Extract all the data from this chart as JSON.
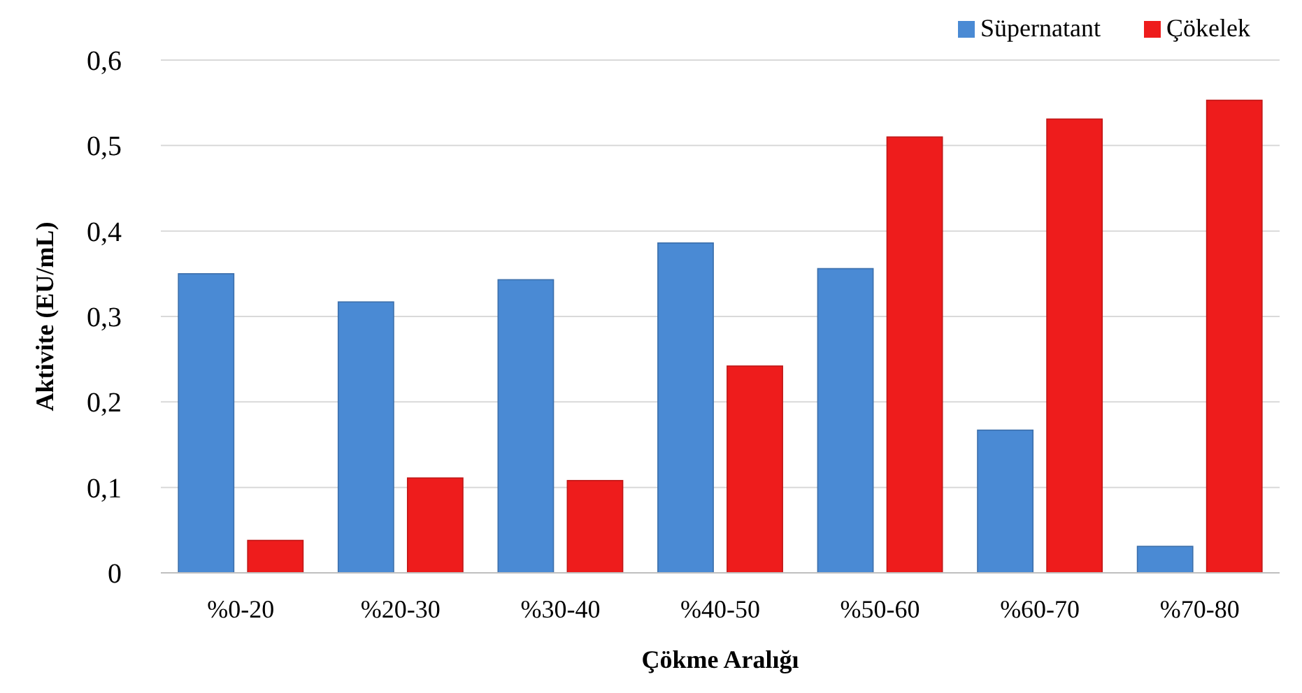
{
  "chart_data": {
    "type": "bar",
    "xlabel": "Çökme Aralığı",
    "ylabel": "Aktivite (EU/mL)",
    "categories": [
      "%0-20",
      "%20-30",
      "%30-40",
      "%40-50",
      "%50-60",
      "%60-70",
      "%70-80"
    ],
    "series": [
      {
        "name": "Süpernatant",
        "color": "#4a8ad4",
        "values": [
          0.35,
          0.317,
          0.343,
          0.386,
          0.356,
          0.167,
          0.031
        ]
      },
      {
        "name": "Çökelek",
        "color": "#ee1c1c",
        "values": [
          0.038,
          0.111,
          0.108,
          0.242,
          0.51,
          0.531,
          0.553
        ]
      }
    ],
    "ylim": [
      0,
      0.6
    ],
    "yticks": [
      0,
      {
        "value": 0.1,
        "label": "0,1"
      },
      {
        "value": 0.2,
        "label": "0,2"
      },
      {
        "value": 0.3,
        "label": "0,3"
      },
      {
        "value": 0.4,
        "label": "0,4"
      },
      {
        "value": 0.5,
        "label": "0,5"
      },
      {
        "value": 0.6,
        "label": "0,6"
      }
    ],
    "grid": "y",
    "legend": "top right"
  }
}
